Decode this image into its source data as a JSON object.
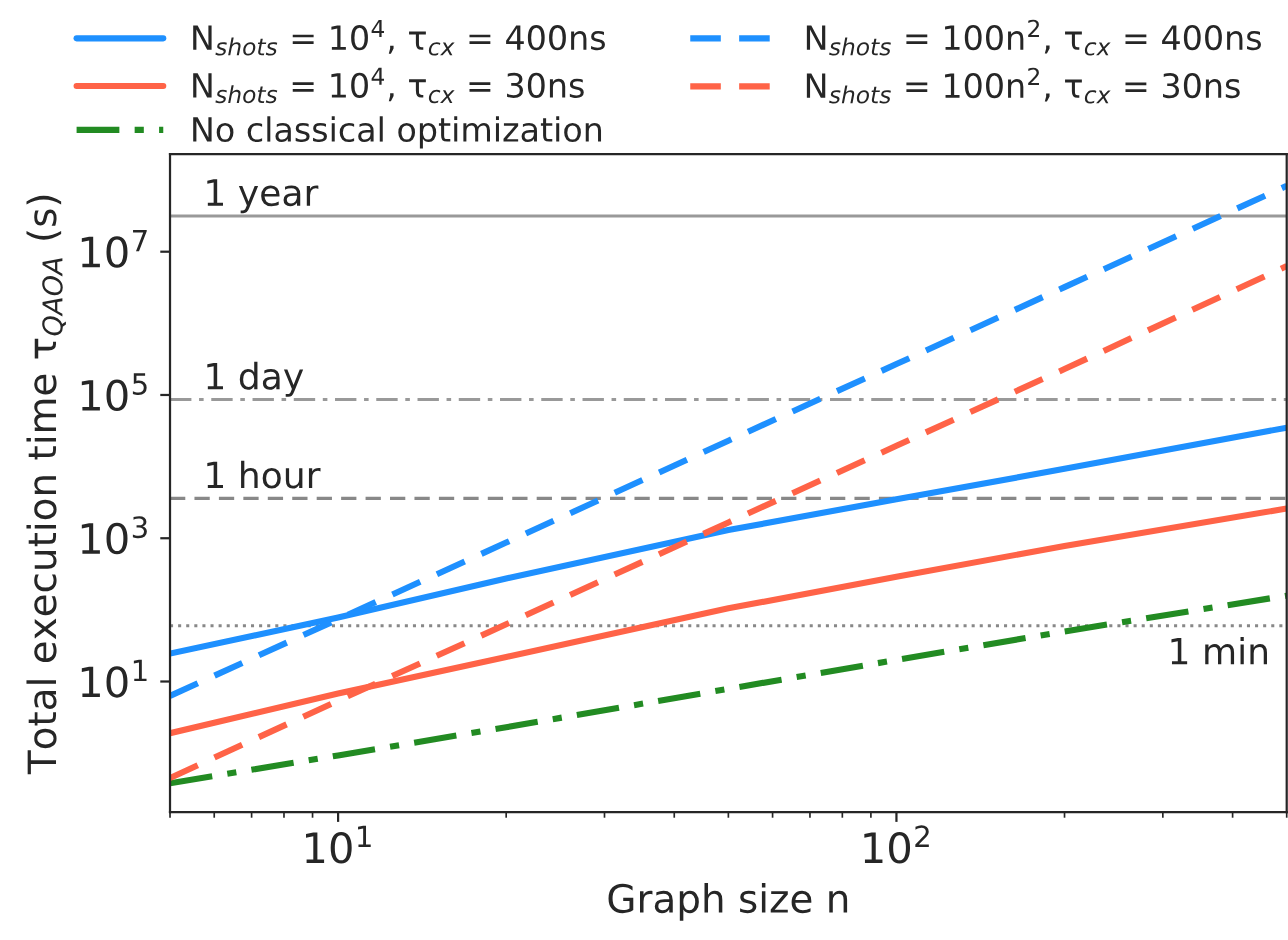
{
  "chart_data": {
    "type": "line",
    "xlabel": "Graph size n",
    "ylabel": "Total execution time τ$_{QAOA}$ (s)",
    "log": "xy",
    "xlim": [
      5,
      500
    ],
    "ylim": [
      0.15,
      230000000
    ],
    "xticks": [
      {
        "value": 10,
        "label": "10$^{1}$"
      },
      {
        "value": 100,
        "label": "10$^{2}$"
      }
    ],
    "yticks": [
      {
        "value": 10,
        "label": "10$^{1}$"
      },
      {
        "value": 1000,
        "label": "10$^{3}$"
      },
      {
        "value": 100000,
        "label": "10$^{5}$"
      },
      {
        "value": 10000000,
        "label": "10$^{7}$"
      }
    ],
    "x": [
      5,
      10,
      20,
      50,
      100,
      200,
      500
    ],
    "legend": "top",
    "grid": false,
    "marker": "none",
    "series": [
      {
        "name": "N$_{shots}$ = 10$^{4}$, τ$_{cx}$ = 400ns",
        "color": "#1e90ff",
        "line_style": "solid",
        "values": [
          24.5,
          78,
          275,
          1300,
          3500,
          9300,
          35000
        ]
      },
      {
        "name": "N$_{shots}$ = 10$^{4}$, τ$_{cx}$ = 30ns",
        "color": "#ff6347",
        "line_style": "solid",
        "values": [
          1.9,
          6.8,
          22,
          105,
          290,
          780,
          2600
        ]
      },
      {
        "name": "No classical optimization",
        "color": "#228b22",
        "line_style": "dashdot",
        "values": [
          0.38,
          0.93,
          2.3,
          7.9,
          20,
          50,
          158
        ]
      },
      {
        "name": "N$_{shots}$ = 100n$^{2}$, τ$_{cx}$ = 400ns",
        "color": "#1e90ff",
        "line_style": "dashed",
        "values": [
          6.3,
          74,
          870,
          23000,
          270000,
          3200000,
          83000000
        ]
      },
      {
        "name": "N$_{shots}$ = 100n$^{2}$, τ$_{cx}$ = 30ns",
        "color": "#ff6347",
        "line_style": "dashed",
        "values": [
          0.45,
          5.4,
          63,
          1660,
          19500,
          230000,
          6300000
        ]
      }
    ],
    "ref_lines": [
      {
        "axis": "y",
        "value": 31536000,
        "label": "1 year",
        "color": "#999999",
        "line_style": "solid"
      },
      {
        "axis": "y",
        "value": 86400,
        "label": "1 day",
        "color": "#999999",
        "line_style": "dashdot"
      },
      {
        "axis": "y",
        "value": 3600,
        "label": "1 hour",
        "color": "#888888",
        "line_style": "dashed"
      },
      {
        "axis": "y",
        "value": 60,
        "label": "1 min",
        "color": "#888888",
        "line_style": "dotted"
      }
    ]
  }
}
